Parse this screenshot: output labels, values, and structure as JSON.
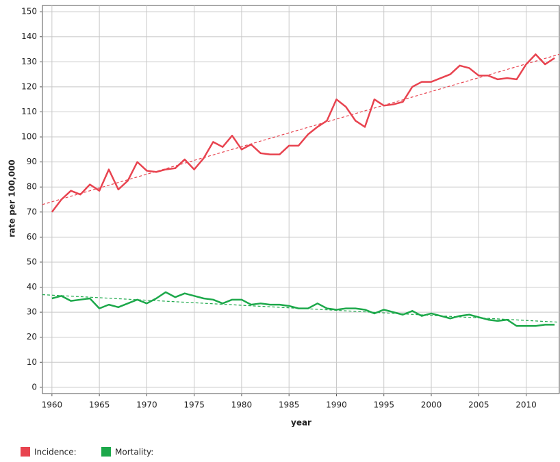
{
  "chart_data": {
    "type": "line",
    "x": [
      1960,
      1961,
      1962,
      1963,
      1964,
      1965,
      1966,
      1967,
      1968,
      1969,
      1970,
      1971,
      1972,
      1973,
      1974,
      1975,
      1976,
      1977,
      1978,
      1979,
      1980,
      1981,
      1982,
      1983,
      1984,
      1985,
      1986,
      1987,
      1988,
      1989,
      1990,
      1991,
      1992,
      1993,
      1994,
      1995,
      1996,
      1997,
      1998,
      1999,
      2000,
      2001,
      2002,
      2003,
      2004,
      2005,
      2006,
      2007,
      2008,
      2009,
      2010,
      2011,
      2012,
      2013
    ],
    "series": [
      {
        "name": "Incidence:",
        "color": "#e8434f",
        "values": [
          70,
          75,
          78.5,
          77,
          81,
          78.5,
          87,
          79,
          82.5,
          90,
          86.5,
          86,
          87,
          87.5,
          91,
          87,
          91.5,
          98,
          96,
          100.5,
          95,
          97,
          93.5,
          93,
          93,
          96.5,
          96.5,
          101,
          104,
          106.5,
          115,
          112,
          106.5,
          104,
          115,
          112.5,
          113,
          114,
          120,
          122,
          122,
          123.5,
          125,
          128.5,
          127.5,
          124.5,
          124.5,
          123,
          123.5,
          123,
          129,
          133,
          129,
          131.5
        ],
        "trend": {
          "x": [
            1959,
            2013.5
          ],
          "values": [
            73,
            133
          ]
        }
      },
      {
        "name": "Mortality:",
        "color": "#1ca84a",
        "values": [
          35.5,
          36.5,
          34.5,
          35,
          35.5,
          31.5,
          33,
          32,
          33.5,
          35,
          33.5,
          35.5,
          38,
          36,
          37.5,
          36.5,
          35.5,
          35,
          33.5,
          35,
          35,
          33,
          33.5,
          33,
          33,
          32.5,
          31.5,
          31.5,
          33.5,
          31.5,
          31,
          31.5,
          31.5,
          31,
          29.5,
          31,
          30,
          29,
          30.5,
          28.5,
          29.5,
          28.5,
          27.5,
          28.5,
          29,
          28,
          27,
          26.5,
          27,
          24.5,
          24.5,
          24.5,
          25,
          25
        ],
        "trend": {
          "x": [
            1959,
            2013.5
          ],
          "values": [
            37,
            26
          ]
        }
      }
    ],
    "x_label": "year",
    "y_label": "rate per 100,000",
    "xlim": [
      1959,
      2013.5
    ],
    "xticks": [
      1960,
      1965,
      1970,
      1975,
      1980,
      1985,
      1990,
      1995,
      2000,
      2005,
      2010
    ],
    "ylim": [
      -2.5,
      152.5
    ],
    "yticks": [
      0,
      10,
      20,
      30,
      40,
      50,
      60,
      70,
      80,
      90,
      100,
      110,
      120,
      130,
      140,
      150
    ],
    "grid": true
  }
}
